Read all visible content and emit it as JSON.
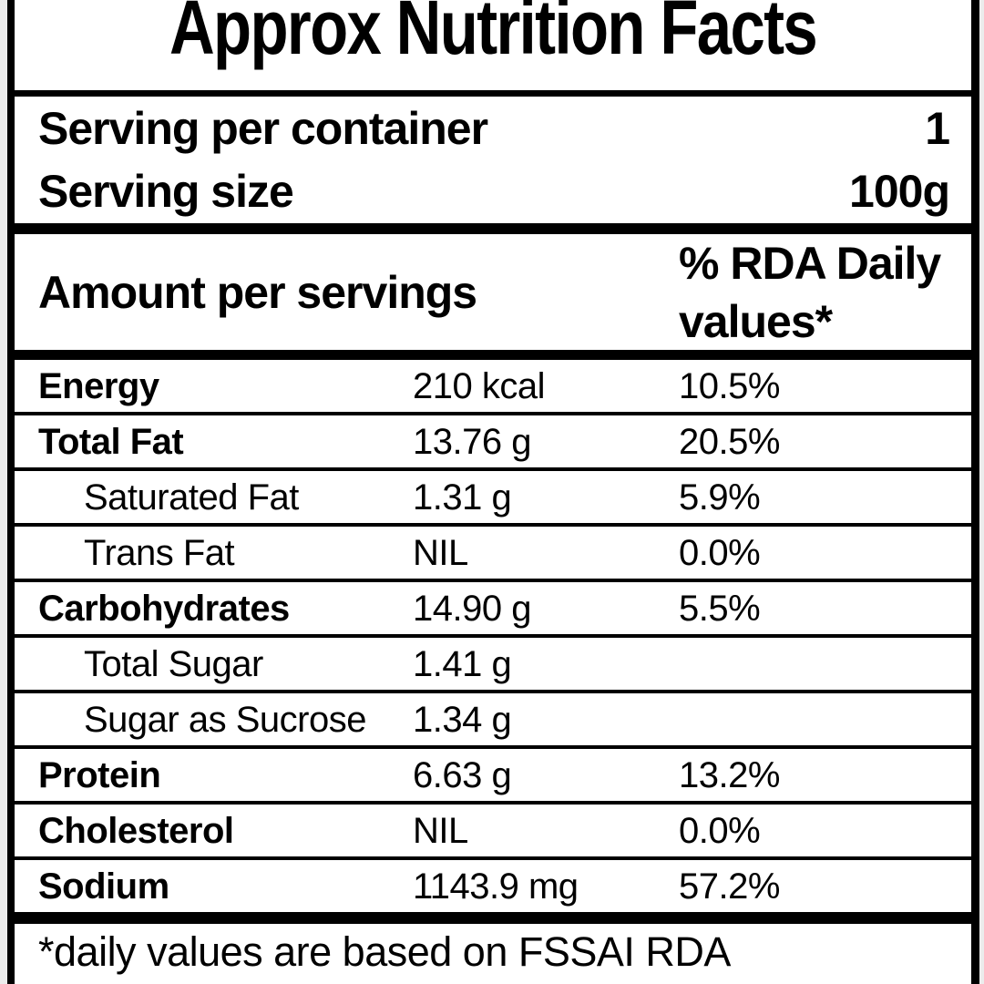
{
  "label": {
    "title": "Approx Nutrition Facts",
    "serving_info": [
      {
        "label": "Serving per container",
        "value": "1"
      },
      {
        "label": "Serving size",
        "value": "100g"
      }
    ],
    "header": {
      "amount_col": "Amount per servings",
      "rda_col": "% RDA Daily values*"
    },
    "rows": [
      {
        "name": "Energy",
        "amount": "210 kcal",
        "rda": "10.5%",
        "bold": true,
        "indent": false
      },
      {
        "name": "Total Fat",
        "amount": "13.76 g",
        "rda": "20.5%",
        "bold": true,
        "indent": false
      },
      {
        "name": "Saturated Fat",
        "amount": "1.31 g",
        "rda": "5.9%",
        "bold": false,
        "indent": true
      },
      {
        "name": "Trans Fat",
        "amount": "NIL",
        "rda": "0.0%",
        "bold": false,
        "indent": true
      },
      {
        "name": "Carbohydrates",
        "amount": "14.90 g",
        "rda": "5.5%",
        "bold": true,
        "indent": false
      },
      {
        "name": "Total Sugar",
        "amount": "1.41 g",
        "rda": "",
        "bold": false,
        "indent": true
      },
      {
        "name": "Sugar as Sucrose",
        "amount": "1.34 g",
        "rda": "",
        "bold": false,
        "indent": true
      },
      {
        "name": "Protein",
        "amount": "6.63 g",
        "rda": "13.2%",
        "bold": true,
        "indent": false
      },
      {
        "name": "Cholesterol",
        "amount": "NIL",
        "rda": "0.0%",
        "bold": true,
        "indent": false
      },
      {
        "name": "Sodium",
        "amount": "1143.9 mg",
        "rda": "57.2%",
        "bold": true,
        "indent": false
      }
    ],
    "footnote": "*daily values are based on FSSAI RDA",
    "colors": {
      "text": "#000000",
      "background": "#ffffff",
      "border": "#000000",
      "edge": "#ececec"
    }
  }
}
